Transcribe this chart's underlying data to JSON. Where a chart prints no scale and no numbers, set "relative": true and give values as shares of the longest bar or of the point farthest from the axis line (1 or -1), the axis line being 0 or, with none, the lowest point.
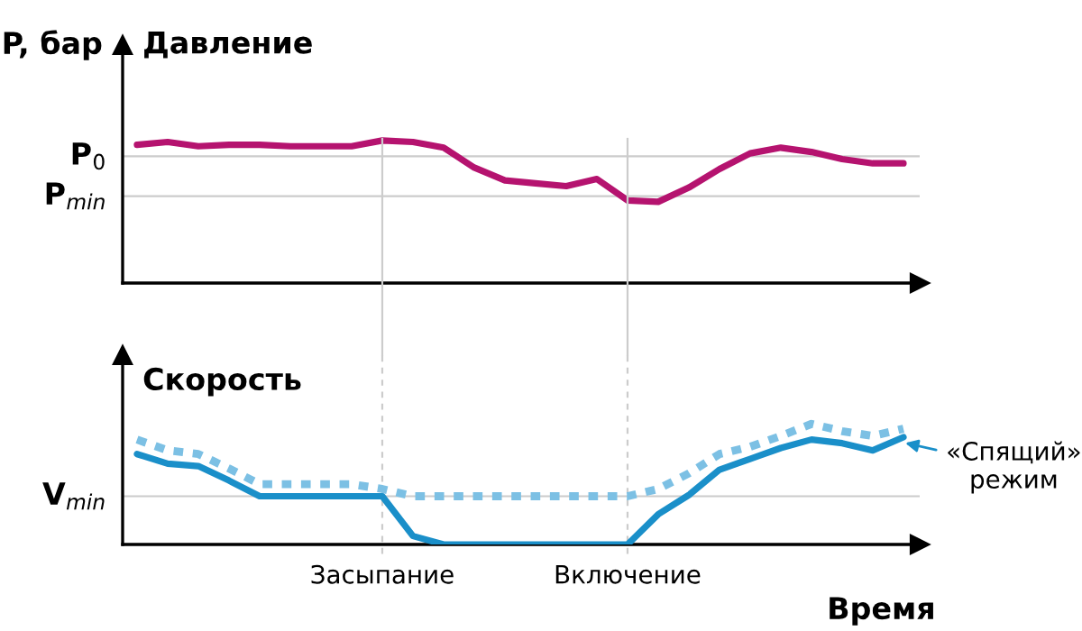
{
  "chart_data": [
    {
      "type": "line",
      "relative": true,
      "ylabel": "P, бар",
      "title": "Давление",
      "tick_labels": false,
      "grid": false,
      "marker": "none",
      "line_style": "solid",
      "categories": [
        null,
        null,
        null,
        null,
        null,
        null,
        null,
        null,
        null,
        null,
        null,
        null,
        null,
        null,
        null,
        null,
        null,
        null,
        null,
        null,
        null,
        null,
        null,
        null,
        null,
        null
      ],
      "series": [
        {
          "color": "#b5136f",
          "values": [
            0.97,
            0.99,
            0.96,
            0.97,
            0.97,
            0.96,
            0.96,
            0.96,
            1.0,
            0.99,
            0.95,
            0.81,
            0.72,
            0.7,
            0.68,
            0.73,
            0.58,
            0.57,
            0.67,
            0.8,
            0.91,
            0.95,
            0.92,
            0.87,
            0.84,
            0.84
          ]
        }
      ],
      "ref_lines": [
        {
          "axis": "y",
          "value": 0.89,
          "label": "P$_{0}$",
          "color": "#cccccc",
          "line_style": "solid"
        },
        {
          "axis": "y",
          "value": 0.61,
          "label": "P$_{min}$",
          "color": "#cccccc",
          "line_style": "solid"
        }
      ]
    },
    {
      "type": "line",
      "relative": true,
      "title": "Скорость",
      "xlabel": "Время",
      "tick_labels": "x",
      "grid": false,
      "legend": "right",
      "marker": "none",
      "categories": [
        null,
        null,
        null,
        null,
        null,
        null,
        null,
        null,
        "Засыпание",
        null,
        null,
        null,
        null,
        null,
        null,
        null,
        "Включение",
        null,
        null,
        null,
        null,
        null,
        null,
        null,
        null,
        null
      ],
      "series": [
        {
          "name": "«Спящий»\nрежим",
          "color": "#1a8fc9",
          "line_style": "solid",
          "values": [
            0.75,
            0.67,
            0.65,
            0.53,
            0.4,
            0.4,
            0.4,
            0.4,
            0.4,
            0.07,
            0,
            0,
            0,
            0,
            0,
            0,
            0,
            0.25,
            0.41,
            0.62,
            0.71,
            0.8,
            0.87,
            0.84,
            0.78,
            0.89
          ]
        },
        {
          "color": "#7cc0e4",
          "line_style": "dotted",
          "values": [
            0.87,
            0.78,
            0.75,
            0.63,
            0.5,
            0.5,
            0.5,
            0.5,
            0.46,
            0.4,
            0.4,
            0.4,
            0.4,
            0.4,
            0.4,
            0.4,
            0.4,
            0.46,
            0.59,
            0.75,
            0.81,
            0.9,
            1.0,
            0.94,
            0.9,
            0.96
          ]
        }
      ],
      "ref_lines": [
        {
          "axis": "y",
          "value": 0.4,
          "label": "V$_{min}$",
          "color": "#cccccc",
          "line_style": "solid"
        },
        {
          "axis": "x",
          "value": "Засыпание",
          "label": null,
          "color": "#cccccc",
          "line_style": "dashed"
        },
        {
          "axis": "x",
          "value": "Включение",
          "label": null,
          "color": "#cccccc",
          "line_style": "dashed"
        }
      ]
    }
  ]
}
